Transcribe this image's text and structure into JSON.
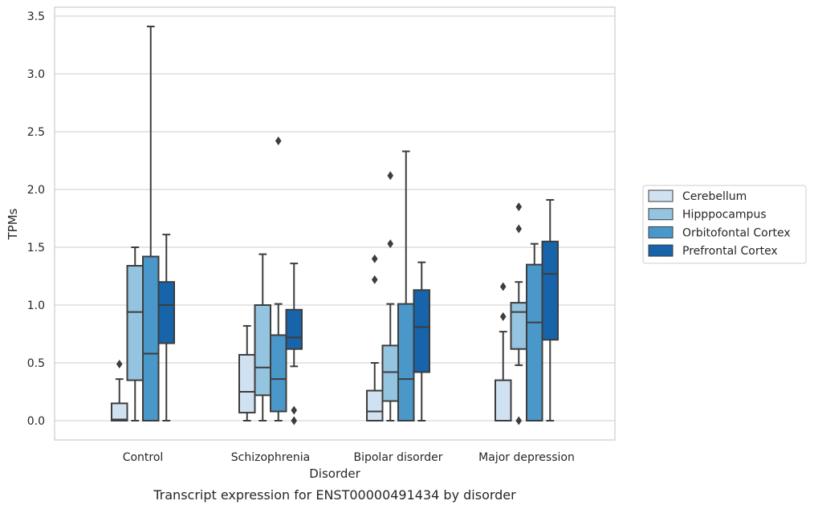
{
  "chart_data": {
    "type": "box",
    "title": "",
    "caption": "Transcript expression for ENST00000491434 by disorder",
    "xlabel": "Disorder",
    "ylabel": "TPMs",
    "ylim": [
      -0.16,
      3.58
    ],
    "yticks": [
      0.0,
      0.5,
      1.0,
      1.5,
      2.0,
      2.5,
      3.0,
      3.5
    ],
    "ytick_labels": [
      "0.0",
      "0.5",
      "1.0",
      "1.5",
      "2.0",
      "2.5",
      "3.0",
      "3.5"
    ],
    "grid": "horizontal",
    "legend_position": "right",
    "categories": [
      "Control",
      "Schizophrenia",
      "Bipolar disorder",
      "Major depression"
    ],
    "series": [
      {
        "name": "Cerebellum",
        "color": "#d0e1f2",
        "boxes": [
          {
            "whisker_low": 0.0,
            "q1": 0.0,
            "median": 0.01,
            "q3": 0.15,
            "whisker_high": 0.36,
            "outliers": [
              0.49
            ]
          },
          {
            "whisker_low": 0.0,
            "q1": 0.07,
            "median": 0.25,
            "q3": 0.57,
            "whisker_high": 0.82,
            "outliers": []
          },
          {
            "whisker_low": 0.0,
            "q1": 0.0,
            "median": 0.08,
            "q3": 0.26,
            "whisker_high": 0.5,
            "outliers": [
              1.22,
              1.4
            ]
          },
          {
            "whisker_low": 0.0,
            "q1": 0.0,
            "median": 0.0,
            "q3": 0.35,
            "whisker_high": 0.77,
            "outliers": [
              0.9,
              1.16
            ]
          }
        ]
      },
      {
        "name": "Hipppocampus",
        "color": "#94c4df",
        "boxes": [
          {
            "whisker_low": 0.0,
            "q1": 0.35,
            "median": 0.94,
            "q3": 1.34,
            "whisker_high": 1.5,
            "outliers": []
          },
          {
            "whisker_low": 0.0,
            "q1": 0.22,
            "median": 0.46,
            "q3": 1.0,
            "whisker_high": 1.44,
            "outliers": []
          },
          {
            "whisker_low": 0.0,
            "q1": 0.17,
            "median": 0.42,
            "q3": 0.65,
            "whisker_high": 1.01,
            "outliers": [
              1.53,
              2.12
            ]
          },
          {
            "whisker_low": 0.48,
            "q1": 0.62,
            "median": 0.94,
            "q3": 1.02,
            "whisker_high": 1.2,
            "outliers": [
              0.0,
              1.66,
              1.85
            ]
          }
        ]
      },
      {
        "name": "Orbitofontal Cortex",
        "color": "#4a98c9",
        "boxes": [
          {
            "whisker_low": 0.0,
            "q1": 0.0,
            "median": 0.58,
            "q3": 1.42,
            "whisker_high": 3.41,
            "outliers": []
          },
          {
            "whisker_low": 0.0,
            "q1": 0.08,
            "median": 0.36,
            "q3": 0.74,
            "whisker_high": 1.01,
            "outliers": [
              2.42
            ]
          },
          {
            "whisker_low": 0.0,
            "q1": 0.0,
            "median": 0.36,
            "q3": 1.01,
            "whisker_high": 2.33,
            "outliers": []
          },
          {
            "whisker_low": 0.0,
            "q1": 0.0,
            "median": 0.85,
            "q3": 1.35,
            "whisker_high": 1.53,
            "outliers": []
          }
        ]
      },
      {
        "name": "Prefrontal Cortex",
        "color": "#1764ab",
        "boxes": [
          {
            "whisker_low": 0.0,
            "q1": 0.67,
            "median": 1.0,
            "q3": 1.2,
            "whisker_high": 1.61,
            "outliers": []
          },
          {
            "whisker_low": 0.47,
            "q1": 0.62,
            "median": 0.72,
            "q3": 0.96,
            "whisker_high": 1.36,
            "outliers": [
              0.0,
              0.09
            ]
          },
          {
            "whisker_low": 0.0,
            "q1": 0.42,
            "median": 0.81,
            "q3": 1.13,
            "whisker_high": 1.37,
            "outliers": []
          },
          {
            "whisker_low": 0.0,
            "q1": 0.7,
            "median": 1.27,
            "q3": 1.55,
            "whisker_high": 1.91,
            "outliers": []
          }
        ]
      }
    ]
  }
}
